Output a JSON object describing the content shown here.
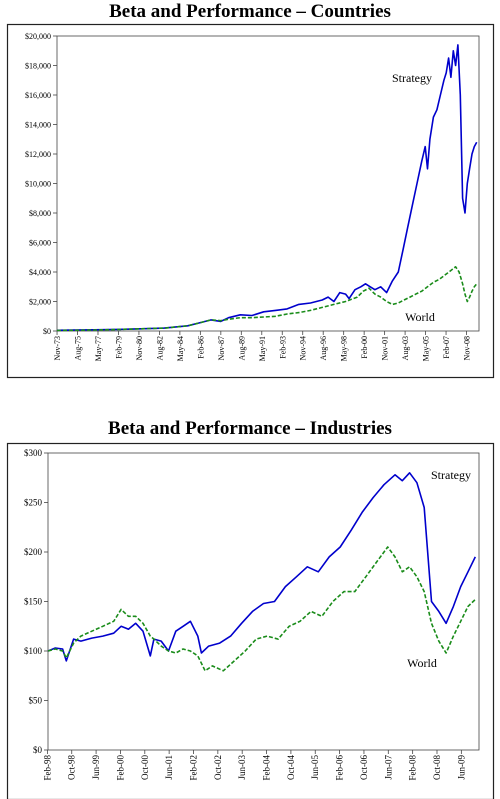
{
  "chart_data": [
    {
      "type": "line",
      "title": "Beta and Performance – Countries",
      "xlabel": "",
      "ylabel": "",
      "ylim": [
        0,
        20000
      ],
      "y_ticks": [
        "$0",
        "$2,000",
        "$4,000",
        "$6,000",
        "$8,000",
        "$10,000",
        "$12,000",
        "$14,000",
        "$16,000",
        "$18,000",
        "$20,000"
      ],
      "x_ticks": [
        "Nov-73",
        "Aug-75",
        "May-77",
        "Feb-79",
        "Nov-80",
        "Aug-82",
        "May-84",
        "Feb-86",
        "Nov-87",
        "Aug-89",
        "May-91",
        "Feb-93",
        "Nov-94",
        "Aug-96",
        "May-98",
        "Feb-00",
        "Nov-01",
        "Aug-03",
        "May-05",
        "Feb-07",
        "Nov-08"
      ],
      "grid": false,
      "series": [
        {
          "name": "Strategy",
          "color": "#0000cc",
          "style": "solid",
          "x": [
            1973.83,
            1975.0,
            1977.0,
            1979.0,
            1981.0,
            1983.0,
            1985.0,
            1986.0,
            1987.0,
            1987.83,
            1988.5,
            1989.5,
            1990.5,
            1991.5,
            1992.5,
            1993.5,
            1994.5,
            1995.5,
            1996.5,
            1997.0,
            1997.5,
            1998.0,
            1998.5,
            1998.8,
            1999.3,
            1999.8,
            2000.2,
            2000.6,
            2001.0,
            2001.5,
            2002.0,
            2002.5,
            2003.0,
            2003.4,
            2003.8,
            2004.2,
            2004.6,
            2005.0,
            2005.3,
            2005.5,
            2005.7,
            2006.0,
            2006.3,
            2006.6,
            2006.9,
            2007.1,
            2007.3,
            2007.5,
            2007.7,
            2007.9,
            2008.1,
            2008.3,
            2008.5,
            2008.7,
            2008.9,
            2009.1,
            2009.3,
            2009.5,
            2009.7
          ],
          "values": [
            50,
            60,
            80,
            110,
            150,
            200,
            350,
            550,
            750,
            650,
            900,
            1100,
            1050,
            1300,
            1400,
            1500,
            1800,
            1900,
            2100,
            2300,
            2000,
            2600,
            2500,
            2200,
            2800,
            3000,
            3200,
            3000,
            2800,
            3000,
            2600,
            3400,
            4000,
            5500,
            7000,
            8500,
            10000,
            11500,
            12500,
            11000,
            13000,
            14500,
            15000,
            16000,
            17000,
            17500,
            18500,
            17200,
            19000,
            18000,
            19400,
            16000,
            9000,
            8000,
            10000,
            11000,
            12000,
            12500,
            12800
          ]
        },
        {
          "name": "World",
          "color": "#1a8c1a",
          "style": "dashed",
          "x": [
            1973.83,
            1975.0,
            1977.0,
            1979.0,
            1981.0,
            1983.0,
            1985.0,
            1986.0,
            1987.0,
            1987.83,
            1988.5,
            1989.5,
            1990.5,
            1991.5,
            1992.5,
            1993.5,
            1994.5,
            1995.5,
            1996.5,
            1997.5,
            1998.5,
            1999.5,
            2000.0,
            2000.5,
            2001.0,
            2001.5,
            2002.0,
            2002.5,
            2003.0,
            2003.5,
            2004.0,
            2004.5,
            2005.0,
            2005.5,
            2006.0,
            2006.5,
            2007.0,
            2007.5,
            2007.9,
            2008.2,
            2008.5,
            2008.7,
            2008.9,
            2009.1,
            2009.3,
            2009.5,
            2009.7
          ],
          "values": [
            40,
            50,
            70,
            100,
            150,
            200,
            350,
            550,
            750,
            700,
            800,
            900,
            900,
            950,
            1000,
            1150,
            1250,
            1400,
            1600,
            1800,
            2000,
            2300,
            2700,
            2900,
            2500,
            2300,
            2000,
            1800,
            1900,
            2100,
            2300,
            2500,
            2700,
            3000,
            3300,
            3500,
            3800,
            4100,
            4350,
            4000,
            3200,
            2500,
            2000,
            2300,
            2700,
            3000,
            3200
          ]
        }
      ],
      "annotations": [
        "Strategy",
        "World"
      ]
    },
    {
      "type": "line",
      "title": "Beta and Performance – Industries",
      "xlabel": "",
      "ylabel": "",
      "ylim": [
        0,
        300
      ],
      "y_ticks": [
        "$0",
        "$50",
        "$100",
        "$150",
        "$200",
        "$250",
        "$300"
      ],
      "x_ticks": [
        "Feb-98",
        "Oct-98",
        "Jun-99",
        "Feb-00",
        "Oct-00",
        "Jun-01",
        "Feb-02",
        "Oct-02",
        "Jun-03",
        "Feb-04",
        "Oct-04",
        "Jun-05",
        "Feb-06",
        "Oct-06",
        "Jun-07",
        "Feb-08",
        "Oct-08",
        "Jun-09"
      ],
      "grid": false,
      "series": [
        {
          "name": "Strategy",
          "color": "#0000cc",
          "style": "solid",
          "x": [
            1998.1,
            1998.3,
            1998.5,
            1998.6,
            1998.8,
            1999.0,
            1999.3,
            1999.6,
            1999.9,
            2000.1,
            2000.3,
            2000.5,
            2000.7,
            2000.9,
            2001.0,
            2001.2,
            2001.4,
            2001.6,
            2001.8,
            2002.0,
            2002.2,
            2002.3,
            2002.5,
            2002.8,
            2003.1,
            2003.4,
            2003.7,
            2004.0,
            2004.3,
            2004.6,
            2004.9,
            2005.2,
            2005.5,
            2005.8,
            2006.1,
            2006.4,
            2006.7,
            2007.0,
            2007.3,
            2007.6,
            2007.8,
            2008.0,
            2008.2,
            2008.4,
            2008.6,
            2008.8,
            2009.0,
            2009.2,
            2009.4,
            2009.6,
            2009.8
          ],
          "values": [
            100,
            103,
            102,
            90,
            112,
            110,
            113,
            115,
            118,
            125,
            122,
            128,
            120,
            95,
            112,
            110,
            100,
            120,
            125,
            130,
            115,
            98,
            105,
            108,
            115,
            128,
            140,
            148,
            150,
            165,
            175,
            185,
            180,
            195,
            205,
            222,
            240,
            255,
            268,
            278,
            272,
            280,
            270,
            245,
            150,
            140,
            128,
            145,
            165,
            180,
            195
          ]
        },
        {
          "name": "World",
          "color": "#1a8c1a",
          "style": "dashed",
          "x": [
            1998.1,
            1998.3,
            1998.5,
            1998.6,
            1998.8,
            1999.0,
            1999.3,
            1999.6,
            1999.9,
            2000.1,
            2000.3,
            2000.5,
            2000.7,
            2000.9,
            2001.0,
            2001.2,
            2001.4,
            2001.6,
            2001.8,
            2002.0,
            2002.2,
            2002.4,
            2002.6,
            2002.9,
            2003.2,
            2003.5,
            2003.8,
            2004.1,
            2004.4,
            2004.7,
            2005.0,
            2005.3,
            2005.6,
            2005.9,
            2006.2,
            2006.5,
            2006.8,
            2007.1,
            2007.4,
            2007.6,
            2007.8,
            2008.0,
            2008.2,
            2008.4,
            2008.6,
            2008.8,
            2009.0,
            2009.2,
            2009.4,
            2009.6,
            2009.8
          ],
          "values": [
            100,
            102,
            100,
            93,
            108,
            115,
            120,
            125,
            130,
            142,
            135,
            135,
            128,
            115,
            112,
            105,
            100,
            98,
            102,
            100,
            95,
            80,
            85,
            80,
            90,
            100,
            112,
            115,
            112,
            125,
            130,
            140,
            135,
            150,
            160,
            160,
            175,
            190,
            205,
            195,
            180,
            185,
            175,
            160,
            128,
            110,
            98,
            115,
            130,
            145,
            152
          ]
        }
      ],
      "annotations": [
        "Strategy",
        "World"
      ]
    }
  ]
}
